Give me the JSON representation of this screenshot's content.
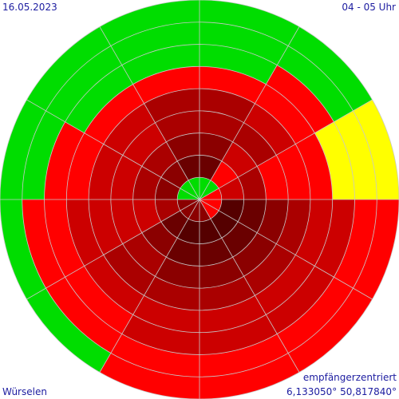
{
  "header": {
    "date": "16.05.2023",
    "hour_range": "04 - 05 Uhr"
  },
  "footer": {
    "location": "Würselen",
    "mode": "empfängerzentriert",
    "coordinates": "6,133050° 50,817840°"
  },
  "colors": {
    "green": "#00dd00",
    "yellow": "#ffff00",
    "red": "#ff0000",
    "dark_red_1": "#cc0000",
    "dark_red_2": "#aa0000",
    "dark_red_3": "#8b0000",
    "dark_red_4": "#6a0000",
    "dark_red_5": "#550000",
    "grid": "#c8c8c8"
  },
  "chart_data": {
    "type": "polar_sector_heatmap",
    "sectors": 12,
    "sector_width_deg": 30,
    "angle_zero": "east",
    "angle_direction": "counterclockwise",
    "rings": 9,
    "sector_colors": [
      [
        "red",
        "dark_red_1",
        "dark_red_2",
        "red",
        "red",
        "red",
        "yellow",
        "yellow",
        "yellow"
      ],
      [
        "green",
        "red",
        "dark_red_1",
        "dark_red_2",
        "dark_red_1",
        "red",
        "red",
        "green",
        "green"
      ],
      [
        "green",
        "dark_red_4",
        "dark_red_3",
        "dark_red_2",
        "dark_red_2",
        "red",
        "green",
        "green",
        "green"
      ],
      [
        "green",
        "dark_red_4",
        "dark_red_3",
        "dark_red_2",
        "dark_red_2",
        "red",
        "green",
        "green",
        "green"
      ],
      [
        "green",
        "dark_red_3",
        "dark_red_2",
        "dark_red_1",
        "dark_red_1",
        "red",
        "green",
        "green",
        "green"
      ],
      [
        "green",
        "dark_red_3",
        "dark_red_2",
        "dark_red_1",
        "dark_red_1",
        "red",
        "red",
        "green",
        "green"
      ],
      [
        "dark_red_3",
        "dark_red_2",
        "dark_red_1",
        "dark_red_1",
        "dark_red_1",
        "dark_red_1",
        "red",
        "red",
        "green"
      ],
      [
        "dark_red_3",
        "dark_red_4",
        "dark_red_3",
        "dark_red_2",
        "dark_red_2",
        "dark_red_1",
        "red",
        "red",
        "green"
      ],
      [
        "dark_red_3",
        "dark_red_5",
        "dark_red_4",
        "dark_red_3",
        "dark_red_2",
        "dark_red_1",
        "dark_red_1",
        "red",
        "red"
      ],
      [
        "dark_red_3",
        "dark_red_5",
        "dark_red_4",
        "dark_red_3",
        "dark_red_2",
        "dark_red_1",
        "dark_red_1",
        "red",
        "red"
      ],
      [
        "red",
        "dark_red_5",
        "dark_red_4",
        "dark_red_3",
        "dark_red_2",
        "dark_red_1",
        "dark_red_1",
        "red",
        "red"
      ],
      [
        "red",
        "dark_red_5",
        "dark_red_4",
        "dark_red_3",
        "dark_red_2",
        "dark_red_1",
        "dark_red_1",
        "red",
        "red"
      ]
    ]
  }
}
